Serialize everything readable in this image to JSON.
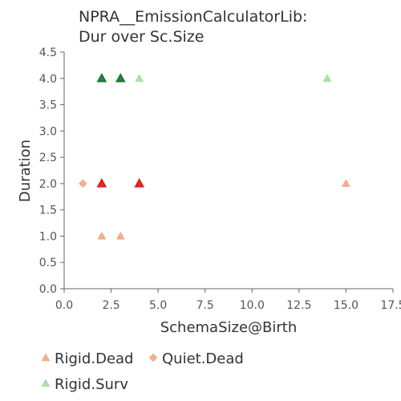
{
  "chart_data": {
    "type": "scatter",
    "title": [
      "NPRA__EmissionCalculatorLib:",
      "Dur over Sc.Size"
    ],
    "xlabel": "SchemaSize@Birth",
    "ylabel": "Duration",
    "xlim": [
      0,
      17.5
    ],
    "ylim": [
      0,
      4.5
    ],
    "x_ticks": [
      "0.0",
      "2.5",
      "5.0",
      "7.5",
      "10.0",
      "12.5",
      "15.0",
      "17.5"
    ],
    "y_ticks": [
      "0.0",
      "0.5",
      "1.0",
      "1.5",
      "2.0",
      "2.5",
      "3.0",
      "3.5",
      "4.0",
      "4.5"
    ],
    "grid": false,
    "legend_position": "bottom",
    "series": [
      {
        "name": "Rigid.Dead",
        "marker": "triangle",
        "color": "#f4a582",
        "emphasis_color": "#e41a1c",
        "points": [
          {
            "x": 2,
            "y": 1,
            "emphasis": false
          },
          {
            "x": 3,
            "y": 1,
            "emphasis": false
          },
          {
            "x": 2,
            "y": 2,
            "emphasis": true
          },
          {
            "x": 4,
            "y": 2,
            "emphasis": true
          },
          {
            "x": 15,
            "y": 2,
            "emphasis": false
          }
        ]
      },
      {
        "name": "Quiet.Dead",
        "marker": "diamond",
        "color": "#f4a582",
        "emphasis_color": "#e41a1c",
        "points": [
          {
            "x": 1,
            "y": 2,
            "emphasis": false
          }
        ]
      },
      {
        "name": "Rigid.Surv",
        "marker": "triangle",
        "color": "#a6dba0",
        "emphasis_color": "#1b7837",
        "points": [
          {
            "x": 2,
            "y": 4,
            "emphasis": true
          },
          {
            "x": 3,
            "y": 4,
            "emphasis": true
          },
          {
            "x": 4,
            "y": 4,
            "emphasis": false
          },
          {
            "x": 14,
            "y": 4,
            "emphasis": false
          }
        ]
      }
    ]
  }
}
